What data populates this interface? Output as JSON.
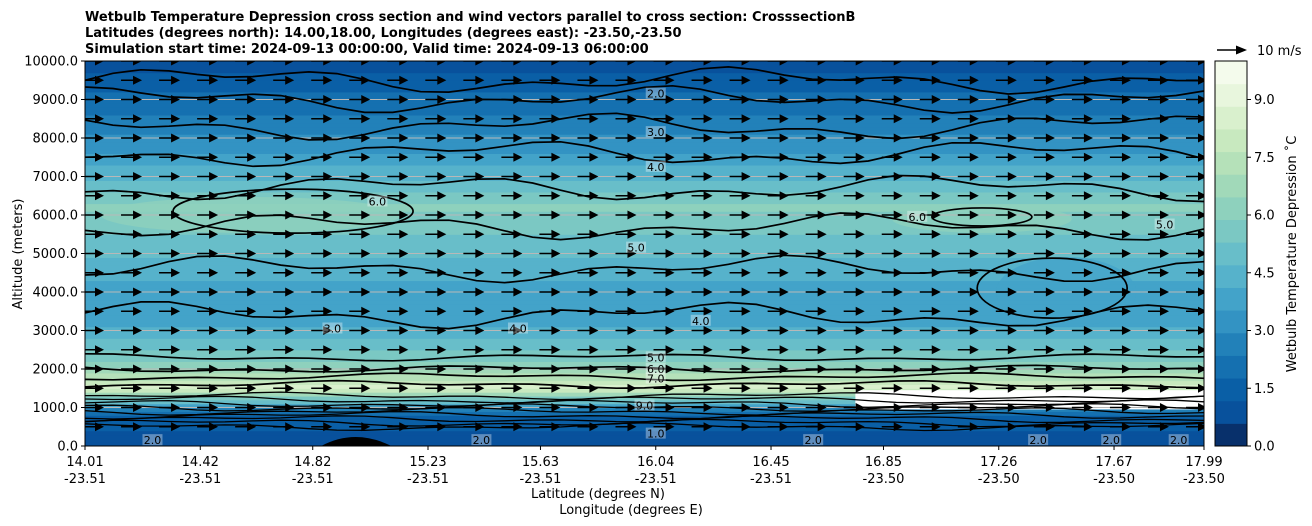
{
  "chart_data": {
    "type": "heatmap",
    "title_lines": [
      "Wetbulb Temperature Depression cross section and wind vectors parallel to cross section: CrosssectionB",
      "Latitudes (degrees north): 14.00,18.00, Longitudes (degrees east): -23.50,-23.50",
      "Simulation start time: 2024-09-13 00:00:00, Valid time: 2024-09-13 06:00:00"
    ],
    "xlabel_lat": "Latitude (degrees N)",
    "xlabel_lon": "Longitude (degrees E)",
    "ylabel": "Altitude (meters)",
    "ylim": [
      0,
      10000
    ],
    "y_ticks": [
      "0.0",
      "1000.0",
      "2000.0",
      "3000.0",
      "4000.0",
      "5000.0",
      "6000.0",
      "7000.0",
      "8000.0",
      "9000.0",
      "10000.0"
    ],
    "x_ticks": [
      {
        "lat": "14.01",
        "lon": "-23.51"
      },
      {
        "lat": "14.42",
        "lon": "-23.51"
      },
      {
        "lat": "14.82",
        "lon": "-23.51"
      },
      {
        "lat": "15.23",
        "lon": "-23.51"
      },
      {
        "lat": "15.63",
        "lon": "-23.51"
      },
      {
        "lat": "16.04",
        "lon": "-23.51"
      },
      {
        "lat": "16.45",
        "lon": "-23.51"
      },
      {
        "lat": "16.85",
        "lon": "-23.50"
      },
      {
        "lat": "17.26",
        "lon": "-23.50"
      },
      {
        "lat": "17.67",
        "lon": "-23.50"
      },
      {
        "lat": "17.99",
        "lon": "-23.50"
      }
    ],
    "colorbar": {
      "label": "Wetbulb Temperature Depression ˚C",
      "range": [
        0,
        10
      ],
      "ticks": [
        "0.0",
        "1.5",
        "3.0",
        "4.5",
        "6.0",
        "7.5",
        "9.0"
      ],
      "colors": [
        "#08306b",
        "#08519c",
        "#0a5fa6",
        "#1570b0",
        "#2281b9",
        "#3393c3",
        "#43a3c9",
        "#56b2cb",
        "#68bec9",
        "#7bc8c3",
        "#8ed1bd",
        "#a1d9b9",
        "#b5e1b9",
        "#c8e9bf",
        "#d9f0cd",
        "#e8f6dd",
        "#f4fbec"
      ]
    },
    "wind_key": {
      "label": "10 m/s"
    },
    "altitude_profile_rows": [
      {
        "altitude": 9800,
        "wetbulb_depression": 1.0
      },
      {
        "altitude": 9000,
        "wetbulb_depression": 2.0
      },
      {
        "altitude": 8000,
        "wetbulb_depression": 3.0
      },
      {
        "altitude": 7200,
        "wetbulb_depression": 4.2
      },
      {
        "altitude": 6200,
        "wetbulb_depression": 6.0
      },
      {
        "altitude": 5200,
        "wetbulb_depression": 5.0
      },
      {
        "altitude": 4200,
        "wetbulb_depression": 4.0
      },
      {
        "altitude": 3200,
        "wetbulb_depression": 4.0
      },
      {
        "altitude": 2600,
        "wetbulb_depression": 5.0
      },
      {
        "altitude": 2000,
        "wetbulb_depression": 6.5
      },
      {
        "altitude": 1500,
        "wetbulb_depression": 8.5
      },
      {
        "altitude": 900,
        "wetbulb_depression": 2.0
      },
      {
        "altitude": 300,
        "wetbulb_depression": 1.0
      }
    ],
    "contour_labels": [
      {
        "text": "2.0",
        "lat": 16.04,
        "alt": 9100
      },
      {
        "text": "3.0",
        "lat": 16.04,
        "alt": 8100
      },
      {
        "text": "4.0",
        "lat": 16.04,
        "alt": 7200
      },
      {
        "text": "6.0",
        "lat": 15.05,
        "alt": 6300
      },
      {
        "text": "6.0",
        "lat": 16.97,
        "alt": 5900
      },
      {
        "text": "5.0",
        "lat": 15.97,
        "alt": 5100
      },
      {
        "text": "5.0",
        "lat": 17.85,
        "alt": 5700
      },
      {
        "text": "3.0",
        "lat": 14.89,
        "alt": 3000
      },
      {
        "text": "4.0",
        "lat": 15.55,
        "alt": 3000
      },
      {
        "text": "4.0",
        "lat": 16.2,
        "alt": 3200
      },
      {
        "text": "5.0",
        "lat": 16.04,
        "alt": 2250
      },
      {
        "text": "6.0",
        "lat": 16.04,
        "alt": 1950
      },
      {
        "text": "7.0",
        "lat": 16.04,
        "alt": 1700
      },
      {
        "text": "9.0",
        "lat": 16.0,
        "alt": 1000
      },
      {
        "text": "1.0",
        "lat": 16.04,
        "alt": 270
      },
      {
        "text": "2.0",
        "lat": 14.25,
        "alt": 100
      },
      {
        "text": "2.0",
        "lat": 15.42,
        "alt": 100
      },
      {
        "text": "2.0",
        "lat": 16.6,
        "alt": 100
      },
      {
        "text": "2.0",
        "lat": 17.4,
        "alt": 100
      },
      {
        "text": "2.0",
        "lat": 17.66,
        "alt": 100
      },
      {
        "text": "2.0",
        "lat": 17.9,
        "alt": 100
      }
    ]
  }
}
